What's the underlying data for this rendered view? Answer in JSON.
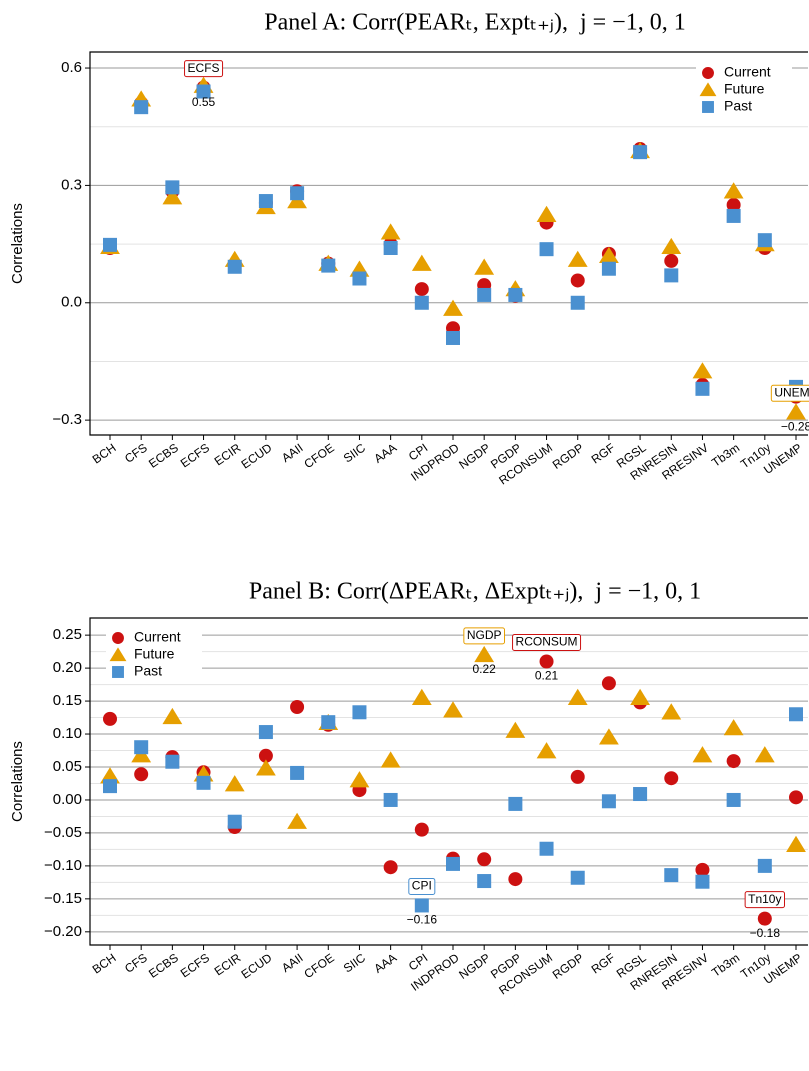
{
  "chart_data": [
    {
      "type": "dot",
      "title": "Panel A: Corr(PEARₜ, Exptₜ₊ⱼ),  j = −1, 0, 1",
      "y_label": "Correlations",
      "categories": [
        "BCH",
        "CFS",
        "ECBS",
        "ECFS",
        "ECIR",
        "ECUD",
        "AAII",
        "CFOE",
        "SIIC",
        "AAA",
        "CPI",
        "INDPROD",
        "NGDP",
        "PGDP",
        "RCONSUM",
        "RGDP",
        "RGF",
        "RGSL",
        "RNRESIN",
        "RRESINV",
        "Tb3m",
        "Tn10y",
        "UNEMP"
      ],
      "series": [
        {
          "name": "Current",
          "color": "#cc1111",
          "marker": "circle",
          "values": [
            0.14,
            0.51,
            0.285,
            0.55,
            0.097,
            0.255,
            0.285,
            0.1,
            0.072,
            0.15,
            0.035,
            -0.065,
            0.045,
            0.018,
            0.205,
            0.057,
            0.125,
            0.393,
            0.107,
            -0.21,
            0.25,
            0.14,
            -0.24
          ],
          "value_labels": [
            null,
            null,
            null,
            "0.55",
            null,
            null,
            null,
            null,
            null,
            null,
            null,
            null,
            null,
            null,
            null,
            null,
            null,
            null,
            null,
            null,
            null,
            null,
            null
          ]
        },
        {
          "name": "Future",
          "color": "#e69f00",
          "marker": "triangle",
          "values": [
            0.143,
            0.52,
            0.27,
            0.555,
            0.11,
            0.245,
            0.26,
            0.1,
            0.085,
            0.18,
            0.1,
            -0.015,
            0.09,
            0.035,
            0.225,
            0.11,
            0.12,
            0.388,
            0.143,
            -0.175,
            0.285,
            0.15,
            -0.28
          ],
          "value_labels": [
            null,
            null,
            null,
            null,
            null,
            null,
            null,
            null,
            null,
            null,
            null,
            null,
            null,
            null,
            null,
            null,
            null,
            null,
            null,
            null,
            null,
            null,
            "−0.28"
          ]
        },
        {
          "name": "Past",
          "color": "#4a90d0",
          "marker": "square",
          "values": [
            0.148,
            0.5,
            0.295,
            0.54,
            0.092,
            0.26,
            0.28,
            0.095,
            0.062,
            0.14,
            0.0,
            -0.09,
            0.02,
            0.02,
            0.137,
            0.0,
            0.087,
            0.385,
            0.07,
            -0.22,
            0.222,
            0.16,
            -0.215
          ],
          "value_labels": [
            null,
            null,
            null,
            null,
            null,
            null,
            null,
            null,
            null,
            null,
            null,
            null,
            null,
            null,
            null,
            null,
            null,
            null,
            null,
            null,
            null,
            null,
            null
          ]
        }
      ],
      "ylim": [
        -0.338,
        0.641
      ],
      "yticks": [
        {
          "value": -0.3,
          "label": "−0.3"
        },
        {
          "value": 0,
          "label": "0.0"
        },
        {
          "value": 0.3,
          "label": "0.3"
        },
        {
          "value": 0.6,
          "label": "0.6"
        }
      ],
      "minor_yticks": [
        -0.15,
        0.15,
        0.45
      ],
      "grid": true,
      "legend_loc": "upper right"
    },
    {
      "type": "dot",
      "title": "Panel B: Corr(ΔPEARₜ, ΔExptₜ₊ⱼ),  j = −1, 0, 1",
      "y_label": "Correlations",
      "categories": [
        "BCH",
        "CFS",
        "ECBS",
        "ECFS",
        "ECIR",
        "ECUD",
        "AAII",
        "CFOE",
        "SIIC",
        "AAA",
        "CPI",
        "INDPROD",
        "NGDP",
        "PGDP",
        "RCONSUM",
        "RGDP",
        "RGF",
        "RGSL",
        "RNRESIN",
        "RRESINV",
        "Tb3m",
        "Tn10y",
        "UNEMP"
      ],
      "series": [
        {
          "name": "Current",
          "color": "#cc1111",
          "marker": "circle",
          "values": [
            0.123,
            0.039,
            0.065,
            0.042,
            -0.041,
            0.067,
            0.141,
            0.114,
            0.015,
            -0.102,
            -0.045,
            -0.089,
            -0.09,
            -0.12,
            0.21,
            0.035,
            0.177,
            0.148,
            0.033,
            -0.106,
            0.059,
            -0.18,
            0.004
          ],
          "value_labels": [
            null,
            null,
            null,
            null,
            null,
            null,
            null,
            null,
            null,
            null,
            null,
            null,
            null,
            null,
            "0.21",
            null,
            null,
            null,
            null,
            null,
            null,
            "−0.18",
            null
          ]
        },
        {
          "name": "Future",
          "color": "#e69f00",
          "marker": "triangle",
          "values": [
            0.036,
            0.068,
            0.126,
            0.039,
            0.024,
            0.048,
            -0.033,
            0.117,
            0.03,
            0.06,
            0.155,
            0.136,
            0.22,
            0.105,
            0.074,
            0.155,
            0.095,
            0.155,
            0.133,
            0.068,
            0.109,
            0.068,
            -0.068
          ],
          "value_labels": [
            null,
            null,
            null,
            null,
            null,
            null,
            null,
            null,
            null,
            null,
            null,
            null,
            "0.22",
            null,
            null,
            null,
            null,
            null,
            null,
            null,
            null,
            null,
            null
          ]
        },
        {
          "name": "Past",
          "color": "#4a90d0",
          "marker": "square",
          "values": [
            0.021,
            0.08,
            0.058,
            0.026,
            -0.033,
            0.103,
            0.041,
            0.118,
            0.133,
            0.0,
            -0.16,
            -0.097,
            -0.123,
            -0.006,
            -0.074,
            -0.118,
            -0.002,
            0.009,
            -0.114,
            -0.124,
            0.0,
            -0.1,
            0.13
          ],
          "value_labels": [
            null,
            null,
            null,
            null,
            null,
            null,
            null,
            null,
            null,
            null,
            "−0.16",
            null,
            null,
            null,
            null,
            null,
            null,
            null,
            null,
            null,
            null,
            null,
            null
          ]
        }
      ],
      "ylim": [
        -0.22,
        0.276
      ],
      "yticks": [
        {
          "value": -0.2,
          "label": "−0.20"
        },
        {
          "value": -0.15,
          "label": "−0.15"
        },
        {
          "value": -0.1,
          "label": "−0.10"
        },
        {
          "value": -0.05,
          "label": "−0.05"
        },
        {
          "value": 0,
          "label": "0.00"
        },
        {
          "value": 0.05,
          "label": "0.05"
        },
        {
          "value": 0.1,
          "label": "0.10"
        },
        {
          "value": 0.15,
          "label": "0.15"
        },
        {
          "value": 0.2,
          "label": "0.20"
        },
        {
          "value": 0.25,
          "label": "0.25"
        }
      ],
      "minor_yticks": [
        -0.175,
        -0.125,
        -0.075,
        -0.025,
        0.025,
        0.075,
        0.125,
        0.175,
        0.225
      ],
      "grid": true,
      "legend_loc": "upper left"
    }
  ]
}
